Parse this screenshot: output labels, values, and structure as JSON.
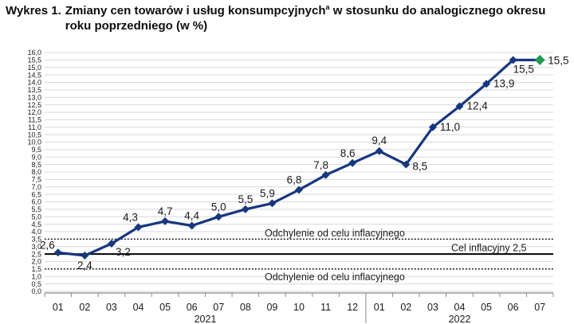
{
  "title": {
    "prefix": "Wykres 1.",
    "line1_before_sup": "Zmiany cen towarów i usług konsumpcyjnych",
    "sup": "a",
    "line1_after_sup": " w stosunku do analogicznego okresu",
    "line2": "roku poprzedniego (w %)"
  },
  "chart_data": {
    "type": "line",
    "title": "Zmiany cen towarów i usług konsumpcyjnych w stosunku do analogicznego okresu roku poprzedniego (w %)",
    "x_months": [
      "01",
      "02",
      "03",
      "04",
      "05",
      "06",
      "07",
      "08",
      "09",
      "10",
      "11",
      "12",
      "01",
      "02",
      "03",
      "04",
      "05",
      "06",
      "07"
    ],
    "x_year_groups": [
      {
        "label": "2021",
        "months": 12
      },
      {
        "label": "2022",
        "months": 7
      }
    ],
    "series": [
      {
        "name": "Zmiany cen towarów i usług konsumpcyjnych r/r (%)",
        "values": [
          2.6,
          2.4,
          3.2,
          4.3,
          4.7,
          4.4,
          5.0,
          5.5,
          5.9,
          6.8,
          7.8,
          8.6,
          9.4,
          8.5,
          11.0,
          12.4,
          13.9,
          15.5,
          15.5
        ]
      }
    ],
    "value_labels": [
      "2,6",
      "2,4",
      "3,2",
      "4,3",
      "4,7",
      "4,4",
      "5,0",
      "5,5",
      "5,9",
      "6,8",
      "7,8",
      "8,6",
      "9,4",
      "8,5",
      "11,0",
      "12,4",
      "13,9",
      "15,5",
      "15,5"
    ],
    "ylim": [
      0,
      16
    ],
    "ytick_step": 0.5,
    "grid": true,
    "legend": "none",
    "last_point_highlighted": true,
    "reference_lines": [
      {
        "value": 3.5,
        "style": "dotted",
        "label": "Odchylenie od celu inflacyjnego",
        "label_position": "above-line"
      },
      {
        "value": 2.5,
        "style": "solid",
        "label": "Cel inflacyjny 2,5",
        "label_position": "above-line-right"
      },
      {
        "value": 1.5,
        "style": "dotted",
        "label": "Odchylenie od celu inflacyjnego",
        "label_position": "below-line"
      }
    ],
    "colors": {
      "line": "#17377e",
      "marker": "#17377e",
      "last_marker": "#239b51",
      "grid": "#d9d9d9",
      "axis": "#8a8a8a",
      "reference": "#000000",
      "text": "#1a1a1a"
    }
  }
}
